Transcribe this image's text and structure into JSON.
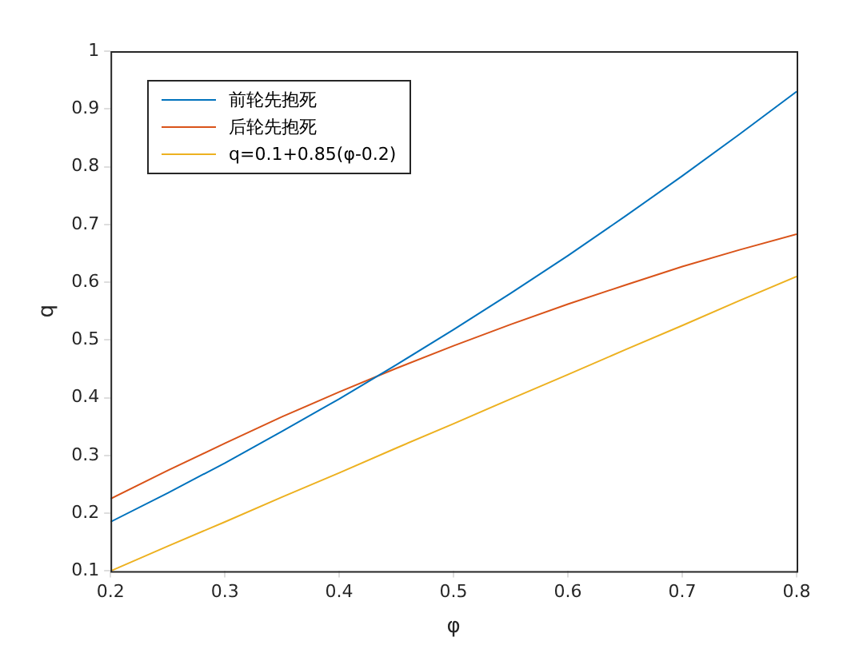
{
  "chart_data": {
    "type": "line",
    "xlabel": "φ",
    "ylabel": "q",
    "x": [
      0.2,
      0.25,
      0.3,
      0.35,
      0.4,
      0.45,
      0.5,
      0.55,
      0.6,
      0.65,
      0.7,
      0.75,
      0.8
    ],
    "series": [
      {
        "name": "前轮先抱死",
        "color": "#0072bd",
        "values": [
          0.185,
          0.235,
          0.287,
          0.342,
          0.398,
          0.457,
          0.518,
          0.581,
          0.646,
          0.714,
          0.784,
          0.856,
          0.93
        ]
      },
      {
        "name": "后轮先抱死",
        "color": "#d95319",
        "values": [
          0.225,
          0.274,
          0.321,
          0.367,
          0.41,
          0.451,
          0.49,
          0.527,
          0.562,
          0.595,
          0.627,
          0.656,
          0.683
        ]
      },
      {
        "name": "q=0.1+0.85(φ-0.2)",
        "color": "#edb120",
        "values": [
          0.1,
          0.143,
          0.185,
          0.228,
          0.27,
          0.313,
          0.355,
          0.398,
          0.44,
          0.483,
          0.525,
          0.568,
          0.61
        ]
      }
    ],
    "xlim": [
      0.2,
      0.8
    ],
    "xticks": [
      0.2,
      0.3,
      0.4,
      0.5,
      0.6,
      0.7,
      0.8
    ],
    "ylim": [
      0.1,
      1
    ],
    "yticks": [
      0.1,
      0.2,
      0.3,
      0.4,
      0.5,
      0.6,
      0.7,
      0.8,
      0.9,
      1
    ],
    "grid": false,
    "legend": "top left",
    "marker": "none",
    "line_style": "solid"
  }
}
